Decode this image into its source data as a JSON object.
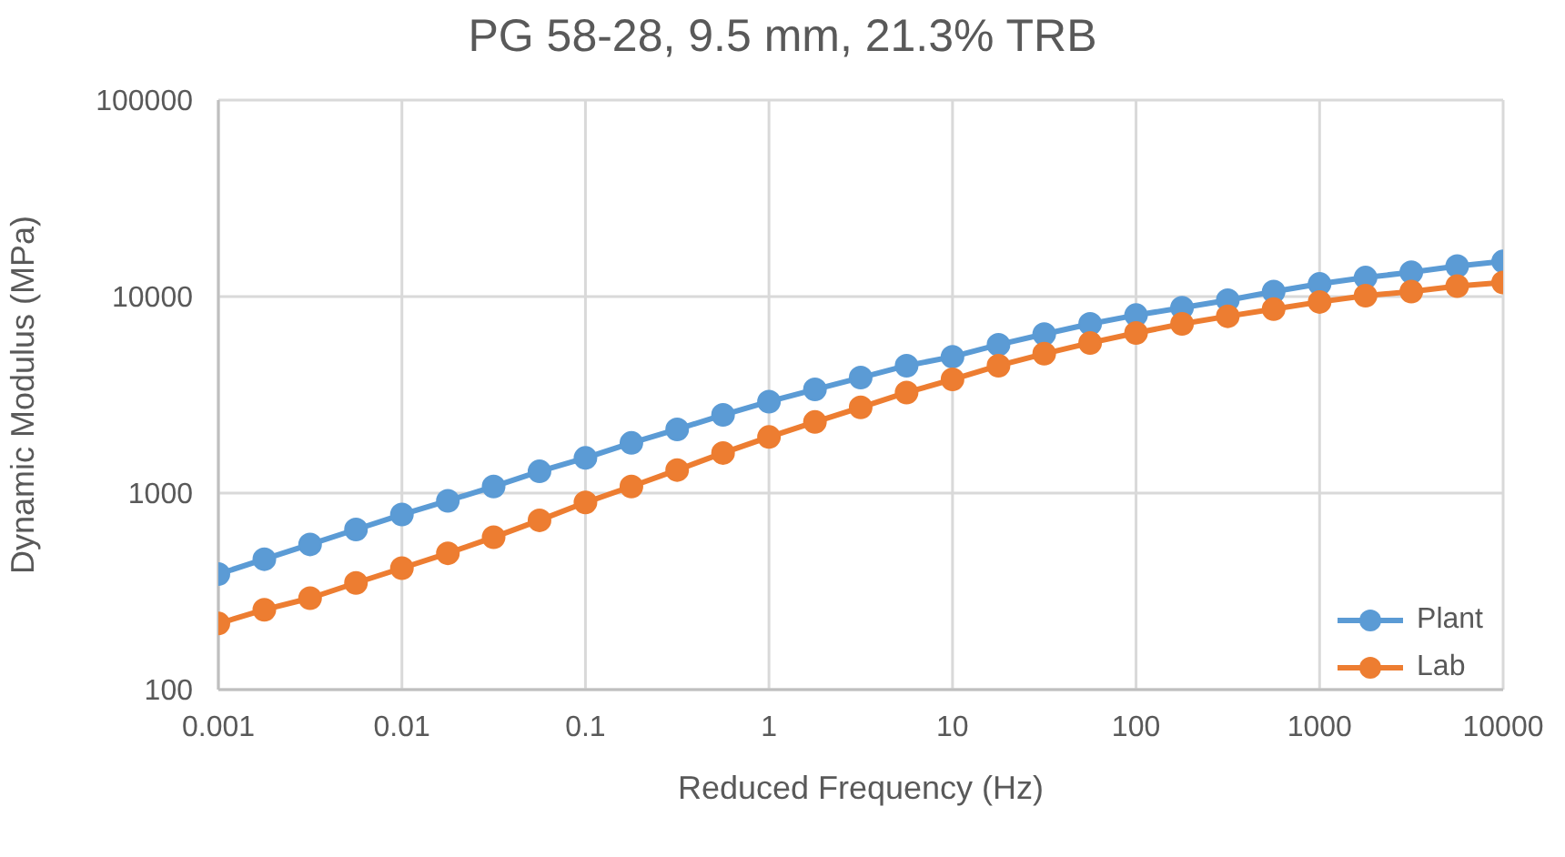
{
  "chart_data": {
    "type": "line",
    "title": "PG 58-28, 9.5 mm, 21.3% TRB",
    "xlabel": "Reduced Frequency (Hz)",
    "ylabel": "Dynamic Modulus (MPa)",
    "x": [
      0.001,
      0.00178,
      0.00316,
      0.00562,
      0.01,
      0.0178,
      0.0316,
      0.0562,
      0.1,
      0.178,
      0.316,
      0.562,
      1,
      1.78,
      3.16,
      5.62,
      10,
      17.8,
      31.6,
      56.2,
      100,
      178,
      316,
      562,
      1000,
      1780,
      3160,
      5620,
      10000
    ],
    "series": [
      {
        "name": "Plant",
        "color": "#5b9bd5",
        "values": [
          387,
          461,
          548,
          653,
          778,
          914,
          1080,
          1290,
          1510,
          1800,
          2110,
          2500,
          2920,
          3370,
          3870,
          4450,
          4940,
          5690,
          6440,
          7260,
          8050,
          8770,
          9590,
          10600,
          11600,
          12500,
          13300,
          14300,
          15100
        ]
      },
      {
        "name": "Lab",
        "color": "#ed7d31",
        "values": [
          217,
          255,
          292,
          349,
          415,
          494,
          596,
          727,
          896,
          1080,
          1310,
          1600,
          1930,
          2300,
          2730,
          3250,
          3790,
          4450,
          5120,
          5810,
          6530,
          7260,
          7940,
          8640,
          9390,
          10100,
          10600,
          11300,
          11800
        ]
      }
    ],
    "xlim": [
      0.001,
      10000
    ],
    "xticks": [
      0.001,
      0.01,
      0.1,
      1,
      10,
      100,
      1000,
      10000
    ],
    "ylim": [
      100,
      100000
    ],
    "yticks": [
      100,
      1000,
      10000,
      100000
    ],
    "log": "xy",
    "grid": true,
    "legend": "bottom right",
    "marker": "circle",
    "line_style": "solid"
  }
}
